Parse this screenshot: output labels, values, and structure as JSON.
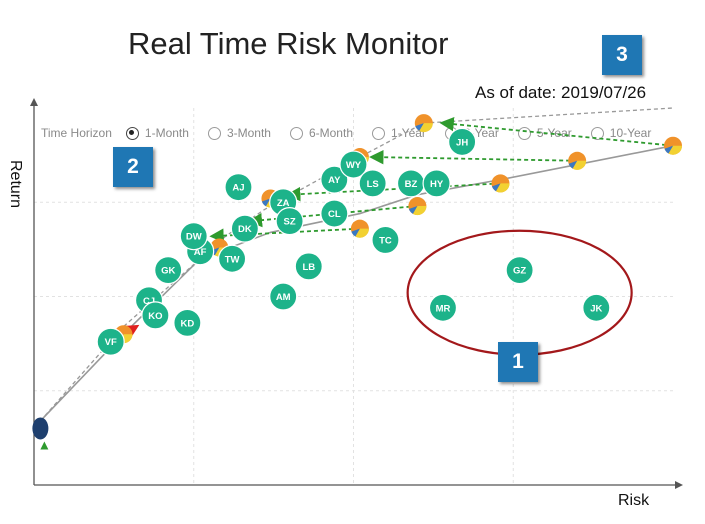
{
  "header": {
    "title": "Real Time Risk Monitor",
    "as_of": "As of date: 2019/07/26"
  },
  "badges": [
    "1",
    "2",
    "3"
  ],
  "time_horizon": {
    "label": "Time Horizon",
    "options": [
      "1-Month",
      "3-Month",
      "6-Month",
      "1-Year",
      "3-Year",
      "5-Year",
      "10-Year"
    ],
    "selected": "1-Month"
  },
  "colors": {
    "asset_bubble": "#1db38a",
    "frontier_line": "#999999",
    "shift_arrow": "#2e9a2e",
    "highlight_ellipse": "#a3181b",
    "badge": "#1f77b4",
    "portfolio_orange": "#f0922a",
    "portfolio_yellow": "#f2d132",
    "portfolio_blue": "#3a78c2",
    "min_risk_marker": "#1e3f6e"
  },
  "chart_data": {
    "type": "scatter",
    "xlabel": "Risk",
    "ylabel": "Return",
    "xlim": [
      0,
      100
    ],
    "ylim": [
      0,
      100
    ],
    "grid": true,
    "assets": [
      {
        "label": "VF",
        "x": 12,
        "y": 38,
        "group": "main"
      },
      {
        "label": "KD",
        "x": 24,
        "y": 43,
        "group": "main"
      },
      {
        "label": "CJ",
        "x": 18,
        "y": 49,
        "group": "main"
      },
      {
        "label": "KO",
        "x": 19,
        "y": 45,
        "group": "main"
      },
      {
        "label": "GK",
        "x": 21,
        "y": 57,
        "group": "main"
      },
      {
        "label": "AF",
        "x": 26,
        "y": 62,
        "group": "main"
      },
      {
        "label": "DW",
        "x": 25,
        "y": 66,
        "group": "main"
      },
      {
        "label": "TW",
        "x": 31,
        "y": 60,
        "group": "main"
      },
      {
        "label": "DK",
        "x": 33,
        "y": 68,
        "group": "main"
      },
      {
        "label": "AJ",
        "x": 32,
        "y": 79,
        "group": "main"
      },
      {
        "label": "ZA",
        "x": 39,
        "y": 75,
        "group": "main"
      },
      {
        "label": "SZ",
        "x": 40,
        "y": 70,
        "group": "main"
      },
      {
        "label": "LB",
        "x": 43,
        "y": 58,
        "group": "main"
      },
      {
        "label": "AM",
        "x": 39,
        "y": 50,
        "group": "main"
      },
      {
        "label": "AY",
        "x": 47,
        "y": 81,
        "group": "main"
      },
      {
        "label": "WY",
        "x": 50,
        "y": 85,
        "group": "main"
      },
      {
        "label": "CL",
        "x": 47,
        "y": 72,
        "group": "main"
      },
      {
        "label": "LS",
        "x": 53,
        "y": 80,
        "group": "main"
      },
      {
        "label": "TC",
        "x": 55,
        "y": 65,
        "group": "main"
      },
      {
        "label": "BZ",
        "x": 59,
        "y": 80,
        "group": "main"
      },
      {
        "label": "HY",
        "x": 63,
        "y": 80,
        "group": "main"
      },
      {
        "label": "JH",
        "x": 67,
        "y": 91,
        "group": "main"
      },
      {
        "label": "GZ",
        "x": 76,
        "y": 57,
        "group": "outlier"
      },
      {
        "label": "MR",
        "x": 64,
        "y": 47,
        "group": "outlier"
      },
      {
        "label": "JK",
        "x": 88,
        "y": 47,
        "group": "outlier"
      }
    ],
    "series": [
      {
        "name": "frontier_current",
        "x": [
          1,
          14,
          26,
          37,
          51,
          60,
          73,
          85,
          100
        ],
        "y": [
          17,
          40,
          60,
          67,
          72,
          77,
          81,
          85,
          90
        ]
      },
      {
        "name": "frontier_shifted",
        "x": [
          1,
          14,
          30,
          36,
          51,
          61,
          100
        ],
        "y": [
          17,
          42,
          66,
          73,
          87,
          96,
          100
        ]
      }
    ],
    "frontier_portfolios": [
      {
        "x": 14,
        "y": 40
      },
      {
        "x": 29,
        "y": 63
      },
      {
        "x": 51,
        "y": 68
      },
      {
        "x": 60,
        "y": 74
      },
      {
        "x": 73,
        "y": 80
      },
      {
        "x": 85,
        "y": 86
      },
      {
        "x": 100,
        "y": 90
      },
      {
        "x": 61,
        "y": 96
      },
      {
        "x": 37,
        "y": 76
      },
      {
        "x": 51,
        "y": 87
      }
    ],
    "shifts": [
      {
        "from": [
          100,
          90
        ],
        "to": [
          64,
          96
        ]
      },
      {
        "from": [
          85,
          86
        ],
        "to": [
          53,
          87
        ]
      },
      {
        "from": [
          73,
          80
        ],
        "to": [
          40,
          77
        ]
      },
      {
        "from": [
          60,
          74
        ],
        "to": [
          34,
          70
        ]
      },
      {
        "from": [
          51,
          68
        ],
        "to": [
          28,
          66
        ]
      },
      {
        "from": [
          14,
          40
        ],
        "to": [
          16,
          42
        ]
      }
    ],
    "highlight": {
      "label": "outlier-group",
      "cx": 76,
      "cy": 51
    }
  }
}
